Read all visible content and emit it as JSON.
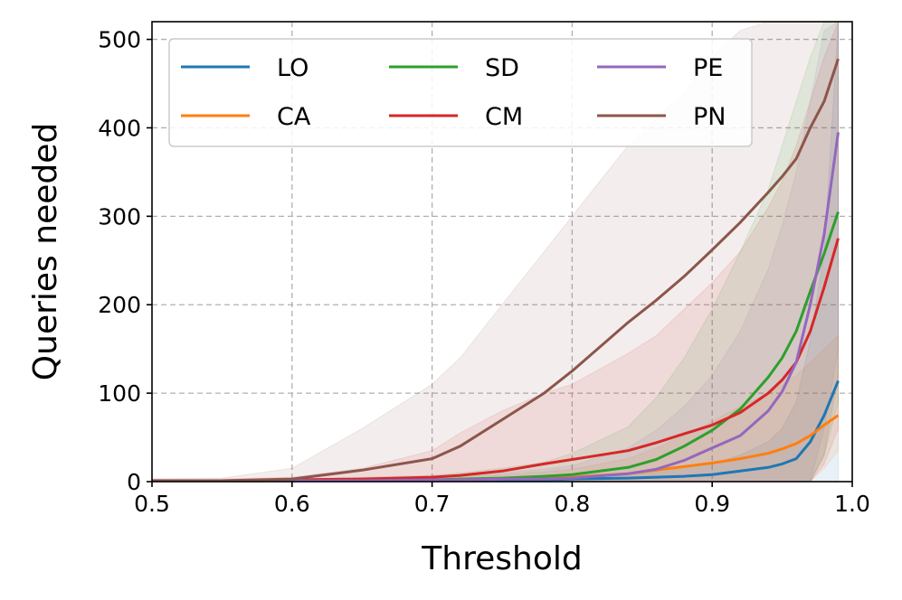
{
  "chart_data": {
    "type": "line",
    "title": "",
    "xlabel": "Threshold",
    "ylabel": "Queries needed",
    "xlim": [
      0.5,
      1.0
    ],
    "ylim": [
      0,
      520
    ],
    "grid": true,
    "legend_position": "top",
    "x_ticks": [
      0.5,
      0.6,
      0.7,
      0.8,
      0.9,
      1.0
    ],
    "x_tick_labels": [
      "0.5",
      "0.6",
      "0.7",
      "0.8",
      "0.9",
      "1.0"
    ],
    "y_ticks": [
      0,
      100,
      200,
      300,
      400,
      500
    ],
    "y_tick_labels": [
      "0",
      "100",
      "200",
      "300",
      "400",
      "500"
    ],
    "x": [
      0.5,
      0.55,
      0.6,
      0.65,
      0.7,
      0.72,
      0.75,
      0.78,
      0.8,
      0.84,
      0.86,
      0.88,
      0.9,
      0.92,
      0.94,
      0.95,
      0.96,
      0.97,
      0.98,
      0.99
    ],
    "series": [
      {
        "name": "LO",
        "color": "#1f77b4",
        "values": [
          1,
          1,
          1,
          1,
          2,
          2,
          2,
          2,
          3,
          4,
          5,
          6,
          8,
          12,
          16,
          20,
          26,
          45,
          75,
          114
        ],
        "lower": [
          0,
          0,
          0,
          0,
          0,
          0,
          0,
          0,
          0,
          0,
          0,
          0,
          0,
          0,
          0,
          0,
          0,
          0,
          0,
          0
        ],
        "upper": [
          2,
          2,
          2,
          3,
          4,
          4,
          5,
          6,
          7,
          10,
          13,
          16,
          20,
          30,
          45,
          60,
          90,
          160,
          260,
          520
        ]
      },
      {
        "name": "CA",
        "color": "#ff7f0e",
        "values": [
          1,
          1,
          1,
          1,
          2,
          2,
          3,
          4,
          5,
          9,
          13,
          17,
          21,
          26,
          32,
          37,
          43,
          52,
          64,
          75
        ],
        "lower": [
          0,
          0,
          0,
          0,
          0,
          0,
          0,
          0,
          0,
          0,
          0,
          0,
          0,
          0,
          0,
          0,
          0,
          0,
          15,
          35
        ],
        "upper": [
          2,
          2,
          3,
          4,
          5,
          6,
          8,
          11,
          14,
          26,
          38,
          52,
          68,
          85,
          100,
          110,
          120,
          135,
          150,
          165
        ]
      },
      {
        "name": "SD",
        "color": "#2ca02c",
        "values": [
          1,
          1,
          1,
          2,
          2,
          3,
          4,
          6,
          8,
          16,
          25,
          40,
          58,
          82,
          118,
          140,
          170,
          215,
          258,
          305
        ],
        "lower": [
          0,
          0,
          0,
          0,
          0,
          0,
          0,
          0,
          0,
          0,
          0,
          0,
          0,
          0,
          0,
          0,
          0,
          0,
          30,
          90
        ],
        "upper": [
          2,
          2,
          3,
          5,
          7,
          10,
          15,
          22,
          32,
          62,
          95,
          140,
          195,
          260,
          330,
          380,
          430,
          480,
          520,
          520
        ]
      },
      {
        "name": "CM",
        "color": "#d62728",
        "values": [
          1,
          1,
          2,
          3,
          5,
          7,
          12,
          20,
          25,
          35,
          44,
          54,
          64,
          78,
          100,
          115,
          135,
          170,
          220,
          275
        ],
        "lower": [
          0,
          0,
          0,
          0,
          0,
          0,
          0,
          0,
          0,
          0,
          0,
          0,
          0,
          0,
          0,
          0,
          0,
          0,
          20,
          60
        ],
        "upper": [
          3,
          3,
          5,
          15,
          35,
          55,
          80,
          100,
          110,
          145,
          165,
          195,
          225,
          260,
          310,
          340,
          380,
          430,
          480,
          520
        ]
      },
      {
        "name": "PE",
        "color": "#9467bd",
        "values": [
          1,
          1,
          1,
          1,
          2,
          2,
          3,
          3,
          4,
          9,
          14,
          24,
          38,
          52,
          80,
          102,
          135,
          200,
          280,
          395
        ],
        "lower": [
          0,
          0,
          0,
          0,
          0,
          0,
          0,
          0,
          0,
          0,
          0,
          0,
          0,
          0,
          0,
          0,
          0,
          0,
          60,
          150
        ],
        "upper": [
          2,
          2,
          2,
          3,
          5,
          7,
          10,
          14,
          18,
          38,
          58,
          85,
          120,
          170,
          240,
          290,
          350,
          430,
          510,
          520
        ]
      },
      {
        "name": "PN",
        "color": "#8c564b",
        "values": [
          1,
          1,
          3,
          13,
          26,
          40,
          70,
          100,
          125,
          180,
          205,
          232,
          262,
          293,
          327,
          345,
          365,
          400,
          430,
          478
        ],
        "lower": [
          0,
          0,
          0,
          0,
          0,
          0,
          0,
          0,
          0,
          0,
          0,
          0,
          0,
          0,
          0,
          0,
          0,
          0,
          30,
          120
        ],
        "upper": [
          3,
          4,
          15,
          60,
          110,
          140,
          200,
          260,
          300,
          380,
          410,
          440,
          480,
          510,
          520,
          520,
          520,
          520,
          520,
          520
        ]
      }
    ],
    "legend_order": [
      "LO",
      "SD",
      "PE",
      "CA",
      "CM",
      "PN"
    ]
  }
}
